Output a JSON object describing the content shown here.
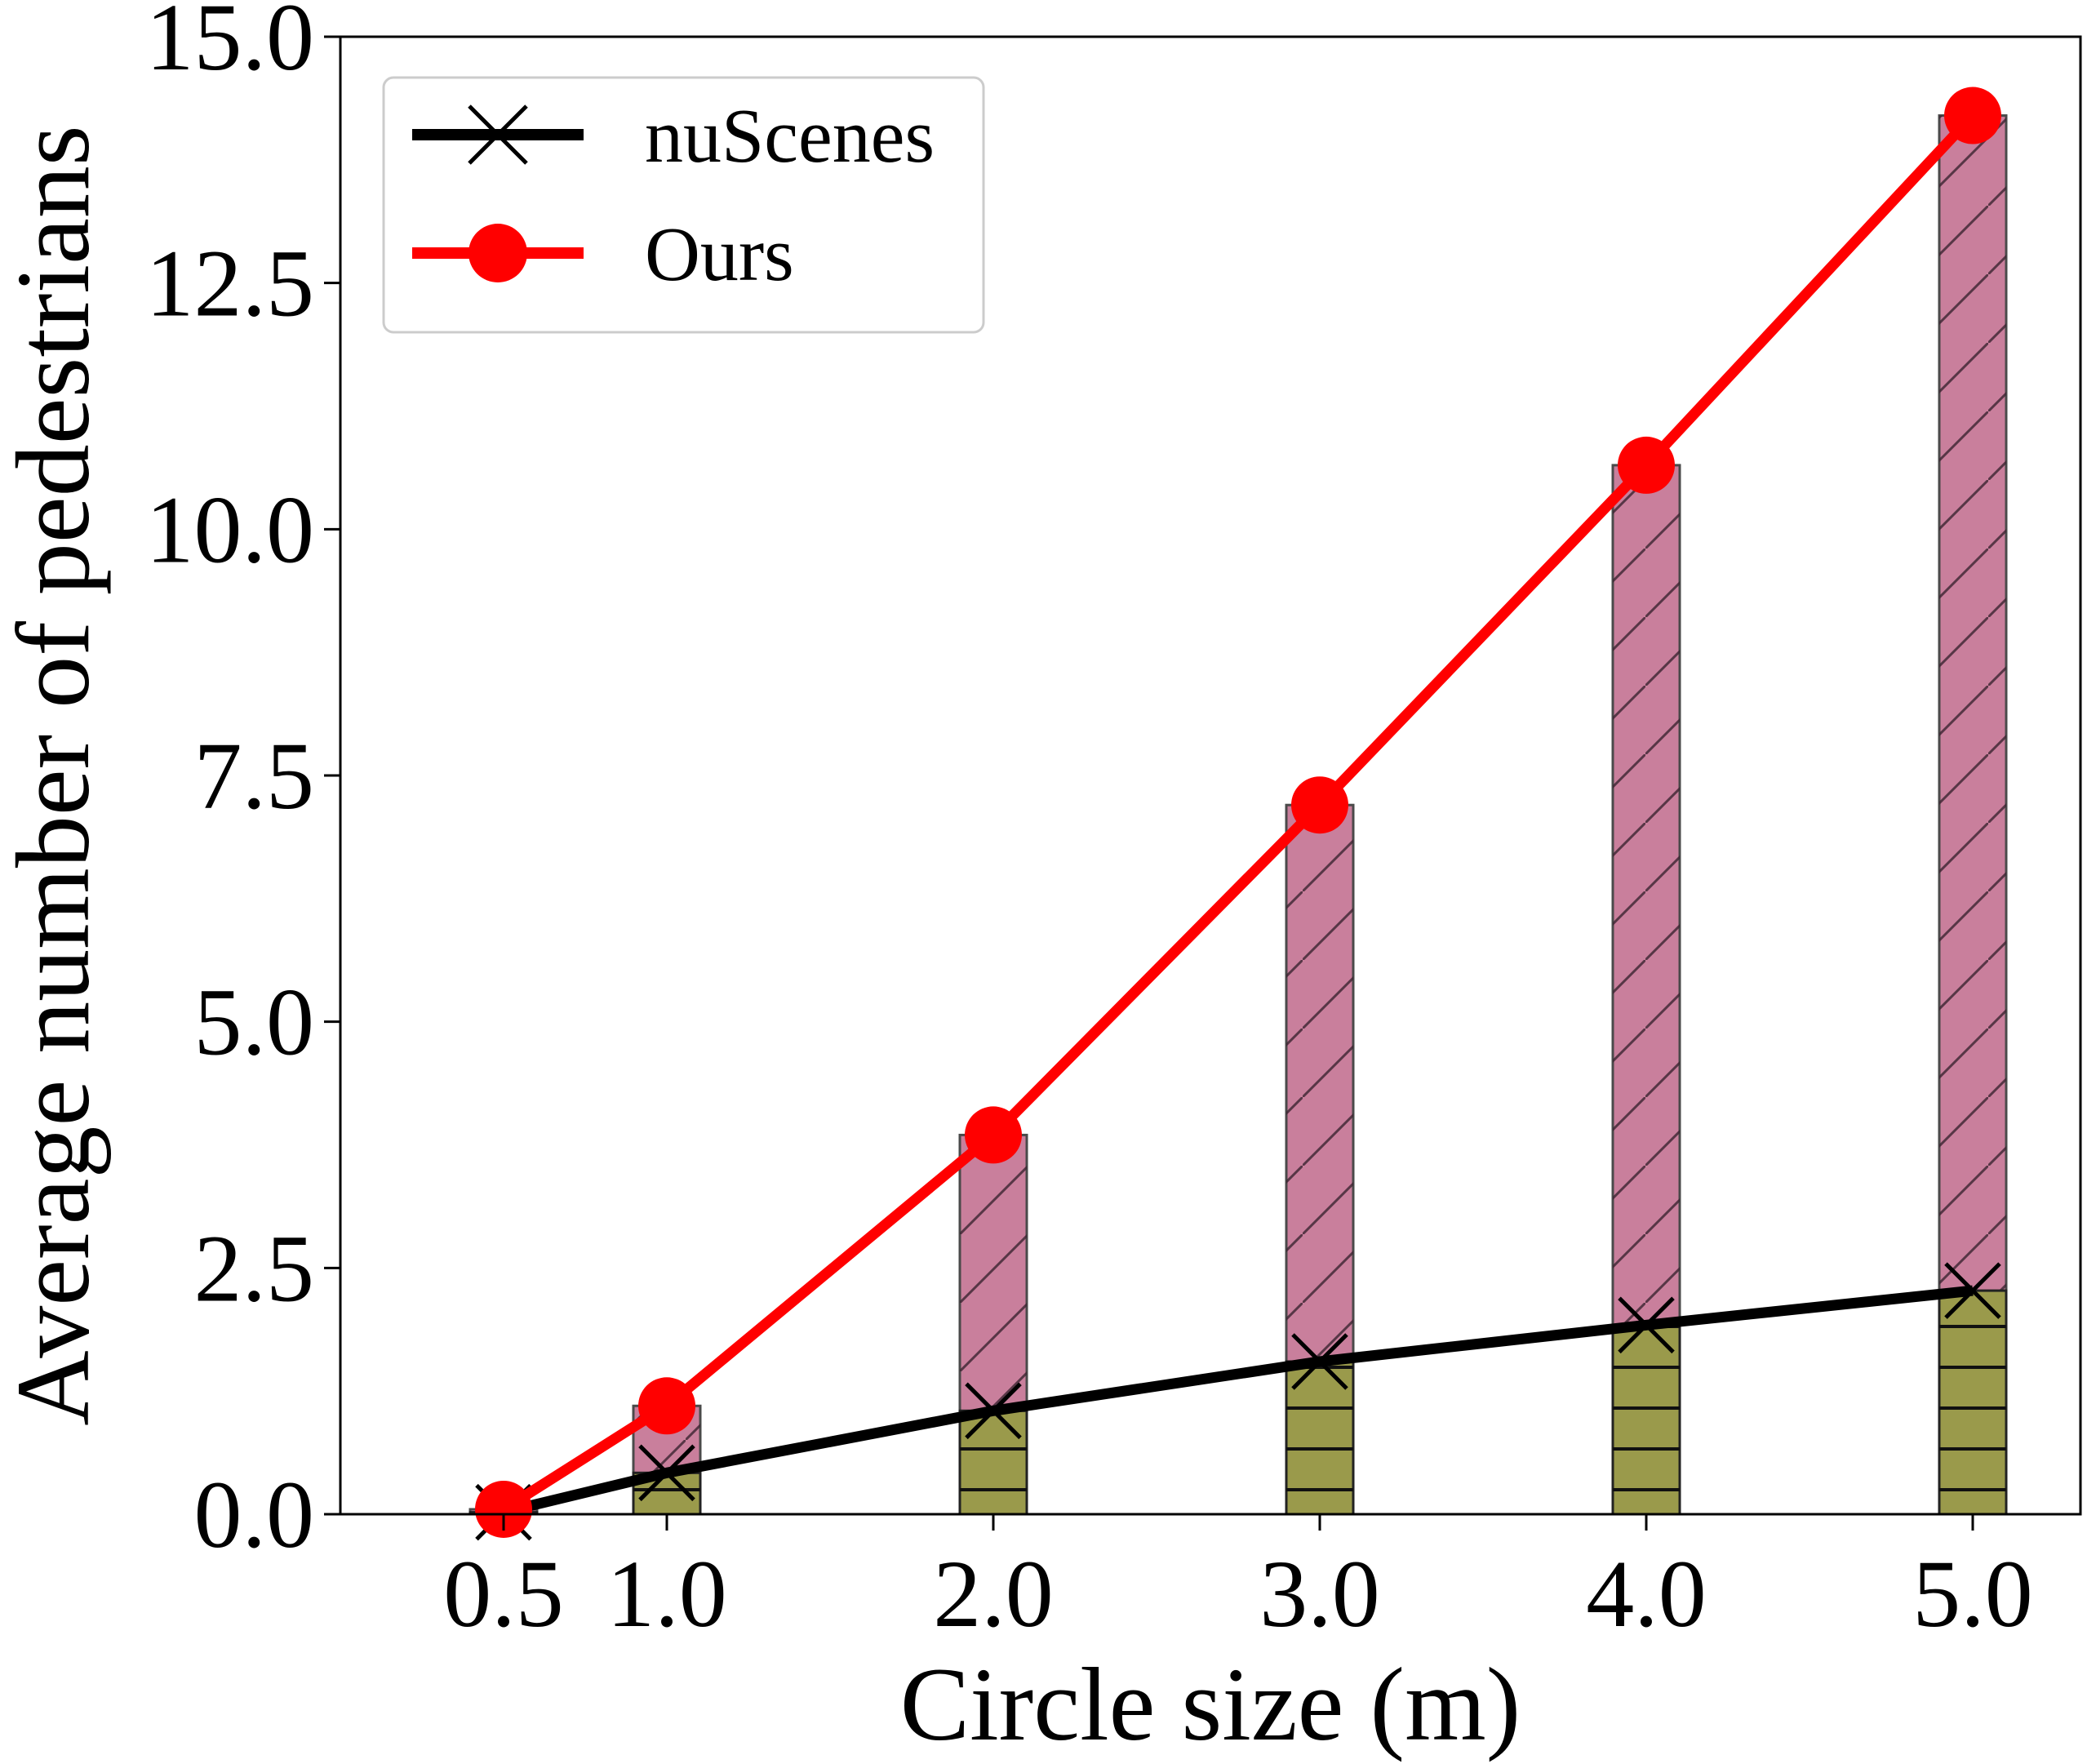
{
  "chart_data": {
    "type": "bar+line",
    "title": "",
    "xlabel": "Circle size (m)",
    "ylabel": "Average number of pedestrians",
    "x": [
      0.5,
      1.0,
      2.0,
      3.0,
      4.0,
      5.0
    ],
    "x_tick_labels": [
      "0.5",
      "1.0",
      "2.0",
      "3.0",
      "4.0",
      "5.0"
    ],
    "xlim": [
      0.0,
      5.33
    ],
    "ylim": [
      0.0,
      15.0
    ],
    "y_ticks": [
      0.0,
      2.5,
      5.0,
      7.5,
      10.0,
      12.5,
      15.0
    ],
    "y_tick_labels": [
      "0.0",
      "2.5",
      "5.0",
      "7.5",
      "10.0",
      "12.5",
      "15.0"
    ],
    "grid": false,
    "legend_position": "top-left",
    "series": [
      {
        "name": "nuScenes",
        "line_color": "#000000",
        "bar_color": "#9a9a4b",
        "marker": "x",
        "hatch": "horizontal",
        "values": [
          0.02,
          0.42,
          1.05,
          1.55,
          1.92,
          2.27
        ]
      },
      {
        "name": "Ours",
        "line_color": "#ff0000",
        "bar_color": "#c97f9c",
        "marker": "circle",
        "hatch": "diagonal",
        "values": [
          0.05,
          1.1,
          3.85,
          7.2,
          10.65,
          14.2
        ]
      }
    ]
  }
}
